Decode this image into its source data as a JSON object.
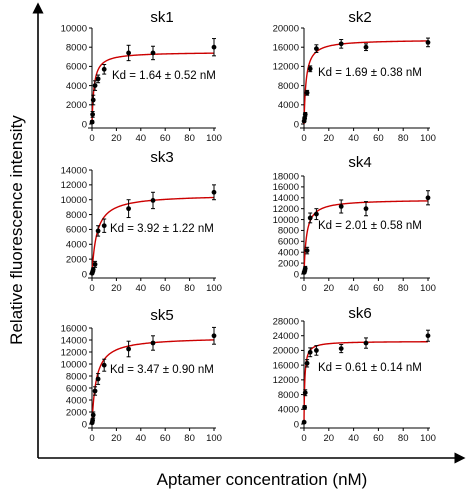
{
  "figure": {
    "y_axis_label": "Relative fluorescence intensity",
    "x_axis_label": "Aptamer concentration (nM)"
  },
  "chart_data": [
    {
      "type": "scatter",
      "title": "sk1",
      "annotation": "Kd = 1.64 ± 0.52 nM",
      "kd": 1.64,
      "bmax": 7500,
      "xlim": [
        0,
        100
      ],
      "ylim": [
        0,
        10000
      ],
      "xticks": [
        "0",
        "20",
        "40",
        "60",
        "80",
        "100"
      ],
      "yticks": [
        "0",
        "2000",
        "4000",
        "6000",
        "8000",
        "10000"
      ],
      "fit_color": "#cc0000",
      "x": [
        0.1,
        0.5,
        1,
        2.5,
        5,
        10,
        30,
        50,
        100
      ],
      "y": [
        200,
        1000,
        2500,
        4000,
        4700,
        5700,
        7400,
        7400,
        8000
      ],
      "err": [
        150,
        300,
        500,
        500,
        400,
        500,
        800,
        700,
        900
      ]
    },
    {
      "type": "scatter",
      "title": "sk2",
      "annotation": "Kd = 1.69 ± 0.38 nM",
      "kd": 1.69,
      "bmax": 17600,
      "xlim": [
        0,
        100
      ],
      "ylim": [
        0,
        20000
      ],
      "xticks": [
        "0",
        "20",
        "40",
        "60",
        "80",
        "100"
      ],
      "yticks": [
        "0",
        "4000",
        "8000",
        "12000",
        "16000",
        "20000"
      ],
      "fit_color": "#cc0000",
      "x": [
        0.1,
        0.5,
        1,
        2.5,
        5,
        10,
        30,
        50,
        100
      ],
      "y": [
        600,
        1200,
        2000,
        6500,
        11500,
        15700,
        16700,
        16000,
        17000
      ],
      "err": [
        200,
        300,
        400,
        500,
        600,
        800,
        900,
        700,
        900
      ]
    },
    {
      "type": "scatter",
      "title": "sk3",
      "annotation": "Kd = 3.92 ± 1.22 nM",
      "kd": 3.92,
      "bmax": 10700,
      "xlim": [
        0,
        100
      ],
      "ylim": [
        0,
        14000
      ],
      "xticks": [
        "0",
        "20",
        "40",
        "60",
        "80",
        "100"
      ],
      "yticks": [
        "0",
        "2000",
        "4000",
        "6000",
        "8000",
        "10000",
        "12000",
        "14000"
      ],
      "fit_color": "#cc0000",
      "x": [
        0.1,
        0.5,
        1,
        2.5,
        5,
        10,
        30,
        50,
        100
      ],
      "y": [
        100,
        300,
        600,
        1300,
        5800,
        6500,
        8800,
        9900,
        11000
      ],
      "err": [
        100,
        150,
        250,
        400,
        700,
        900,
        1200,
        1100,
        1000
      ]
    },
    {
      "type": "scatter",
      "title": "sk4",
      "annotation": "Kd = 2.01 ± 0.58 nM",
      "kd": 2.01,
      "bmax": 13700,
      "xlim": [
        0,
        100
      ],
      "ylim": [
        0,
        18000
      ],
      "xticks": [
        "0",
        "20",
        "40",
        "60",
        "80",
        "100"
      ],
      "yticks": [
        "0",
        "2000",
        "4000",
        "6000",
        "8000",
        "10000",
        "12000",
        "14000",
        "16000",
        "18000"
      ],
      "fit_color": "#cc0000",
      "x": [
        0.1,
        0.5,
        1,
        2.5,
        5,
        10,
        30,
        50,
        100
      ],
      "y": [
        300,
        500,
        1000,
        4300,
        10300,
        11000,
        12400,
        12000,
        14000
      ],
      "err": [
        200,
        300,
        400,
        600,
        900,
        1000,
        1200,
        1300,
        1300
      ]
    },
    {
      "type": "scatter",
      "title": "sk5",
      "annotation": "Kd = 3.47 ± 0.90 nM",
      "kd": 3.47,
      "bmax": 14500,
      "xlim": [
        0,
        100
      ],
      "ylim": [
        0,
        16000
      ],
      "xticks": [
        "0",
        "20",
        "40",
        "60",
        "80",
        "100"
      ],
      "yticks": [
        "0",
        "2000",
        "4000",
        "6000",
        "8000",
        "10000",
        "12000",
        "14000",
        "16000"
      ],
      "fit_color": "#cc0000",
      "x": [
        0.1,
        0.5,
        1,
        2.5,
        5,
        10,
        30,
        50,
        100
      ],
      "y": [
        200,
        600,
        1500,
        5500,
        7500,
        9800,
        12500,
        13500,
        14700
      ],
      "err": [
        150,
        300,
        500,
        700,
        900,
        1000,
        1300,
        1200,
        1400
      ]
    },
    {
      "type": "scatter",
      "title": "sk6",
      "annotation": "Kd = 0.61 ± 0.14 nM",
      "kd": 0.61,
      "bmax": 22500,
      "xlim": [
        0,
        100
      ],
      "ylim": [
        0,
        28000
      ],
      "xticks": [
        "0",
        "20",
        "40",
        "60",
        "80",
        "100"
      ],
      "yticks": [
        "0",
        "4000",
        "8000",
        "12000",
        "16000",
        "20000",
        "24000",
        "28000"
      ],
      "fit_color": "#cc0000",
      "x": [
        0.1,
        0.5,
        1,
        2.5,
        5,
        10,
        30,
        50,
        100
      ],
      "y": [
        500,
        4500,
        8500,
        16500,
        19500,
        20000,
        20500,
        22000,
        24000
      ],
      "err": [
        300,
        500,
        800,
        1000,
        1200,
        1300,
        1100,
        1400,
        1500
      ]
    }
  ]
}
